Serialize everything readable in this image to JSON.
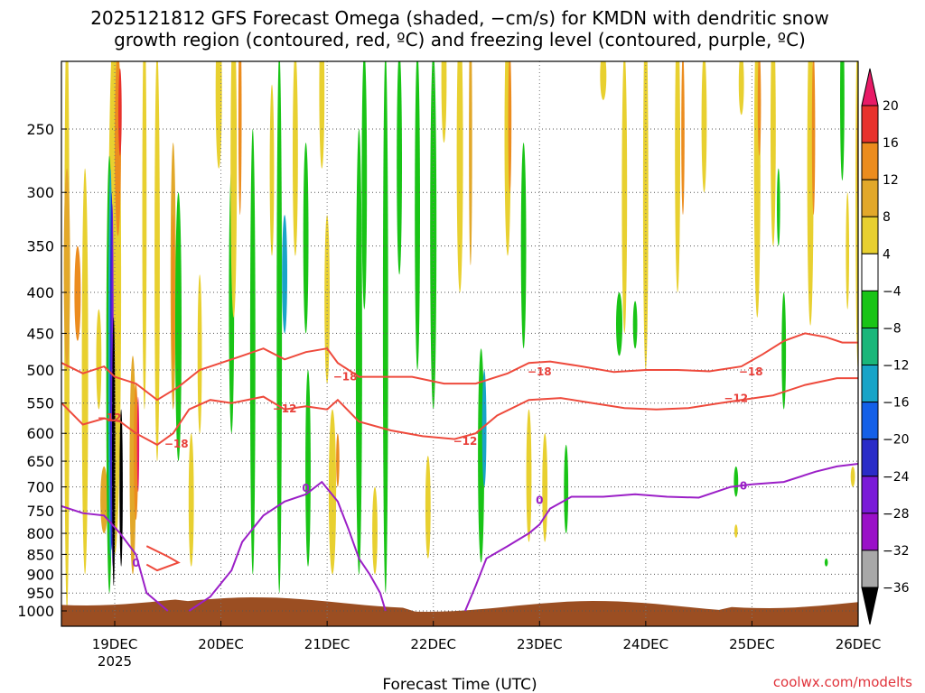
{
  "title_line1": "2025121812 GFS Forecast Omega (shaded, −cm/s) for KMDN with dendritic snow",
  "title_line2": "growth region (contoured, red, ºC) and freezing level (contoured, purple, ºC)",
  "xlabel": "Forecast Time (UTC)",
  "credit": "coolwx.com/modelts",
  "chart_data": {
    "type": "heatmap",
    "x_ticks": [
      {
        "label": "19DEC",
        "sub": "2025",
        "day": 19
      },
      {
        "label": "20DEC",
        "sub": "",
        "day": 20
      },
      {
        "label": "21DEC",
        "sub": "",
        "day": 21
      },
      {
        "label": "22DEC",
        "sub": "",
        "day": 22
      },
      {
        "label": "23DEC",
        "sub": "",
        "day": 23
      },
      {
        "label": "24DEC",
        "sub": "",
        "day": 24
      },
      {
        "label": "25DEC",
        "sub": "",
        "day": 25
      },
      {
        "label": "26DEC",
        "sub": "",
        "day": 26
      }
    ],
    "xlim_days": [
      18.5,
      26.0
    ],
    "y_ticks": [
      "250",
      "300",
      "350",
      "400",
      "450",
      "500",
      "550",
      "600",
      "650",
      "700",
      "750",
      "800",
      "850",
      "900",
      "950",
      "1000"
    ],
    "y_values": [
      250,
      300,
      350,
      400,
      450,
      500,
      550,
      600,
      650,
      700,
      750,
      800,
      850,
      900,
      950,
      1000
    ],
    "ylim_hpa": [
      200,
      1020
    ],
    "y_scale": "log",
    "grid": true,
    "colorbar": {
      "ticks": [
        "20",
        "16",
        "12",
        "8",
        "4",
        "−4",
        "−8",
        "−12",
        "−16",
        "−20",
        "−24",
        "−28",
        "−32",
        "−36"
      ],
      "colors": [
        "#e81a66",
        "#e8322c",
        "#ec8c1e",
        "#e2a82a",
        "#e8d030",
        "#ffffff",
        "#19c416",
        "#1ab67a",
        "#18a4c8",
        "#1460e8",
        "#2a2cc8",
        "#7a1ad8",
        "#9a10c8",
        "#a8a8a8",
        "#000000"
      ]
    },
    "contour_labels_red": [
      {
        "text": "−18",
        "day": 21.17,
        "hpa": 515
      },
      {
        "text": "−18",
        "day": 23.0,
        "hpa": 508
      },
      {
        "text": "−18",
        "day": 24.99,
        "hpa": 508
      },
      {
        "text": "−12",
        "day": 18.95,
        "hpa": 580
      },
      {
        "text": "−12",
        "day": 20.6,
        "hpa": 565
      },
      {
        "text": "−12",
        "day": 22.3,
        "hpa": 620
      },
      {
        "text": "−12",
        "day": 24.85,
        "hpa": 548
      },
      {
        "text": "−18",
        "day": 19.58,
        "hpa": 625
      }
    ],
    "contour_labels_purple": [
      {
        "text": "0",
        "day": 23.0,
        "hpa": 735
      },
      {
        "text": "0",
        "day": 24.92,
        "hpa": 705
      },
      {
        "text": "0",
        "day": 20.8,
        "hpa": 710
      },
      {
        "text": "0",
        "day": 19.2,
        "hpa": 880
      }
    ]
  }
}
